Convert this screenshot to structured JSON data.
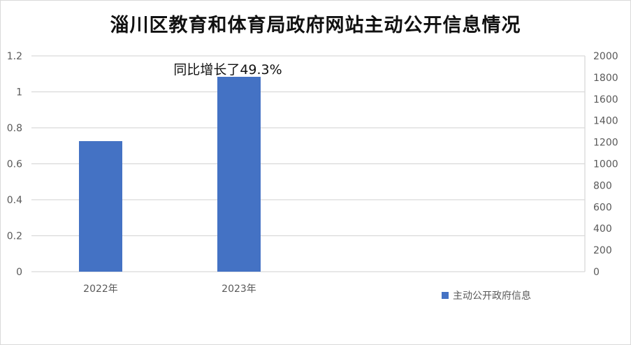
{
  "title": "淄川区教育和体育局政府网站主动公开信息情况",
  "chart_data": {
    "type": "bar",
    "title": "淄川区教育和体育局政府网站主动公开信息情况",
    "categories": [
      "2022年",
      "2023年",
      "",
      ""
    ],
    "series": [
      {
        "name": "主动公开政府信息",
        "values": [
          1210,
          1806,
          null,
          null
        ],
        "axis": "right",
        "color": "#4472c4"
      }
    ],
    "left_axis": {
      "range": [
        0,
        1.2
      ],
      "ticks": [
        "0",
        "0.2",
        "0.4",
        "0.6",
        "0.8",
        "1",
        "1.2"
      ]
    },
    "right_axis": {
      "range": [
        0,
        2000
      ],
      "ticks": [
        "0",
        "200",
        "400",
        "600",
        "800",
        "1000",
        "1200",
        "1400",
        "1600",
        "1800",
        "2000"
      ]
    },
    "annotation": "同比增长了49.3%",
    "grid": true,
    "legend_placement": "bottom-right"
  }
}
